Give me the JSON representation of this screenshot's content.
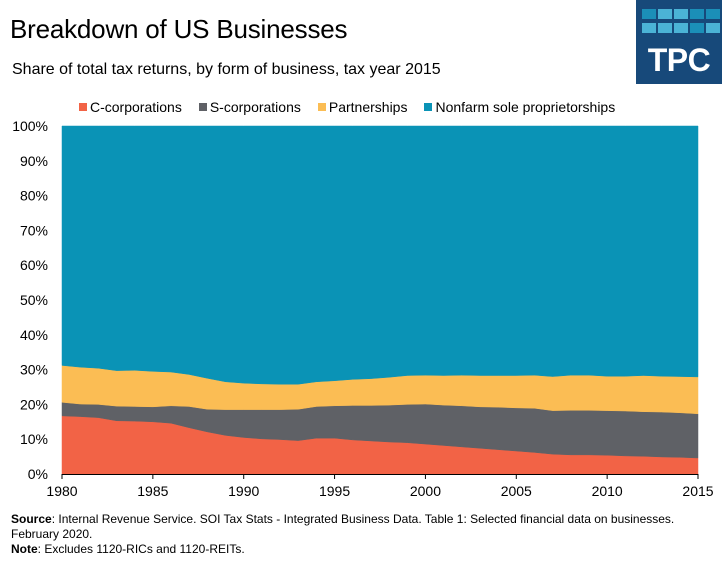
{
  "header": {
    "title": "Breakdown of US Businesses",
    "subtitle": "Share of total tax returns, by form of business, tax year 2015"
  },
  "logo": {
    "text": "TPC",
    "background": "#17497a",
    "grid_colors": [
      "#1b8fb8",
      "#4bb3d6",
      "#4bb3d6",
      "#1b8fb8",
      "#1b8fb8",
      "#4bb3d6",
      "#4bb3d6",
      "#4bb3d6",
      "#1b8fb8",
      "#4bb3d6"
    ]
  },
  "footer": {
    "source_label": "Source",
    "source_text": ": Internal Revenue Service. SOI Tax Stats - Integrated Business Data. Table 1: Selected financial data on businesses. February 2020.",
    "note_label": "Note",
    "note_text": ": Excludes 1120-RICs and 1120-REITs."
  },
  "chart_data": {
    "type": "area",
    "stacked": true,
    "title": "Breakdown of US Businesses",
    "subtitle": "Share of total tax returns, by form of business, tax year 2015",
    "xlabel": "",
    "ylabel": "",
    "x": [
      1980,
      1981,
      1982,
      1983,
      1984,
      1985,
      1986,
      1987,
      1988,
      1989,
      1990,
      1991,
      1992,
      1993,
      1994,
      1995,
      1996,
      1997,
      1998,
      1999,
      2000,
      2001,
      2002,
      2003,
      2004,
      2005,
      2006,
      2007,
      2008,
      2009,
      2010,
      2011,
      2012,
      2013,
      2014,
      2015
    ],
    "xlim": [
      1980,
      2015
    ],
    "ylim": [
      0,
      100
    ],
    "x_ticks": [
      1980,
      1985,
      1990,
      1995,
      2000,
      2005,
      2010,
      2015
    ],
    "y_ticks": [
      0,
      10,
      20,
      30,
      40,
      50,
      60,
      70,
      80,
      90,
      100
    ],
    "y_tick_labels": [
      "0%",
      "10%",
      "20%",
      "30%",
      "40%",
      "50%",
      "60%",
      "70%",
      "80%",
      "90%",
      "100%"
    ],
    "grid": false,
    "legend_position": "top",
    "series": [
      {
        "name": "C-corporations",
        "color": "#f26346",
        "values": [
          16.7,
          16.5,
          16.2,
          15.3,
          15.2,
          15.0,
          14.6,
          13.3,
          12.1,
          11.1,
          10.5,
          10.1,
          9.9,
          9.6,
          10.3,
          10.3,
          9.8,
          9.5,
          9.2,
          9.0,
          8.6,
          8.2,
          7.8,
          7.4,
          7.0,
          6.6,
          6.2,
          5.7,
          5.5,
          5.5,
          5.4,
          5.2,
          5.1,
          4.9,
          4.8,
          4.6
        ]
      },
      {
        "name": "S-corporations",
        "color": "#5f6166",
        "values": [
          3.9,
          3.6,
          3.8,
          4.2,
          4.2,
          4.3,
          5.0,
          6.1,
          6.5,
          7.4,
          8.0,
          8.4,
          8.6,
          9.0,
          9.1,
          9.3,
          9.9,
          10.2,
          10.6,
          11.0,
          11.5,
          11.6,
          11.8,
          11.9,
          12.2,
          12.4,
          12.7,
          12.5,
          12.8,
          12.8,
          12.8,
          12.9,
          12.8,
          12.9,
          12.8,
          12.7
        ]
      },
      {
        "name": "Partnerships",
        "color": "#fbbd54",
        "values": [
          10.6,
          10.6,
          10.4,
          10.2,
          10.4,
          10.2,
          9.7,
          9.2,
          8.9,
          8.0,
          7.6,
          7.4,
          7.3,
          7.2,
          7.1,
          7.2,
          7.5,
          7.7,
          8.0,
          8.3,
          8.3,
          8.5,
          8.8,
          9.0,
          9.1,
          9.3,
          9.5,
          9.8,
          10.1,
          10.1,
          9.9,
          10.0,
          10.4,
          10.3,
          10.4,
          10.6
        ]
      },
      {
        "name": "Nonfarm sole proprietorships",
        "color": "#0a93b6",
        "values": [
          68.8,
          69.3,
          69.6,
          70.3,
          70.2,
          70.5,
          70.7,
          71.4,
          72.5,
          73.5,
          73.9,
          74.1,
          74.2,
          74.2,
          73.5,
          73.2,
          72.8,
          72.6,
          72.2,
          71.7,
          71.6,
          71.7,
          71.6,
          71.7,
          71.7,
          71.7,
          71.6,
          72.0,
          71.6,
          71.6,
          71.9,
          71.9,
          71.7,
          71.9,
          72.0,
          72.1
        ]
      }
    ]
  }
}
